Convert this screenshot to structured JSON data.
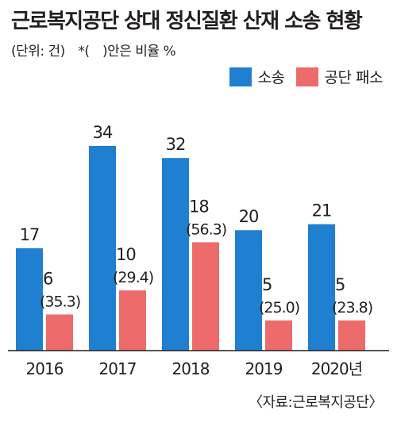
{
  "title": "근로복지공단 상대 정신질환 산재 소송 현황",
  "subtitle": "(단위: 건)　*(　)안은 비율 %",
  "legend": [
    {
      "label": "소송",
      "color": "#1f7fd0"
    },
    {
      "label": "공단 패소",
      "color": "#ee6b6b"
    }
  ],
  "source": "〈자료:근로복지공단〉",
  "chart_data": {
    "type": "bar",
    "categories": [
      "2016",
      "2017",
      "2018",
      "2019",
      "2020년"
    ],
    "series": [
      {
        "name": "소송",
        "values": [
          17,
          34,
          32,
          20,
          21
        ],
        "color": "#1f7fd0"
      },
      {
        "name": "공단 패소",
        "values": [
          6,
          10,
          18,
          5,
          5
        ],
        "ratios": [
          "(35.3)",
          "(29.4)",
          "(56.3)",
          "(25.0)",
          "(23.8)"
        ],
        "color": "#ee6b6b"
      }
    ],
    "ylim": [
      0,
      34
    ],
    "grid": false
  }
}
